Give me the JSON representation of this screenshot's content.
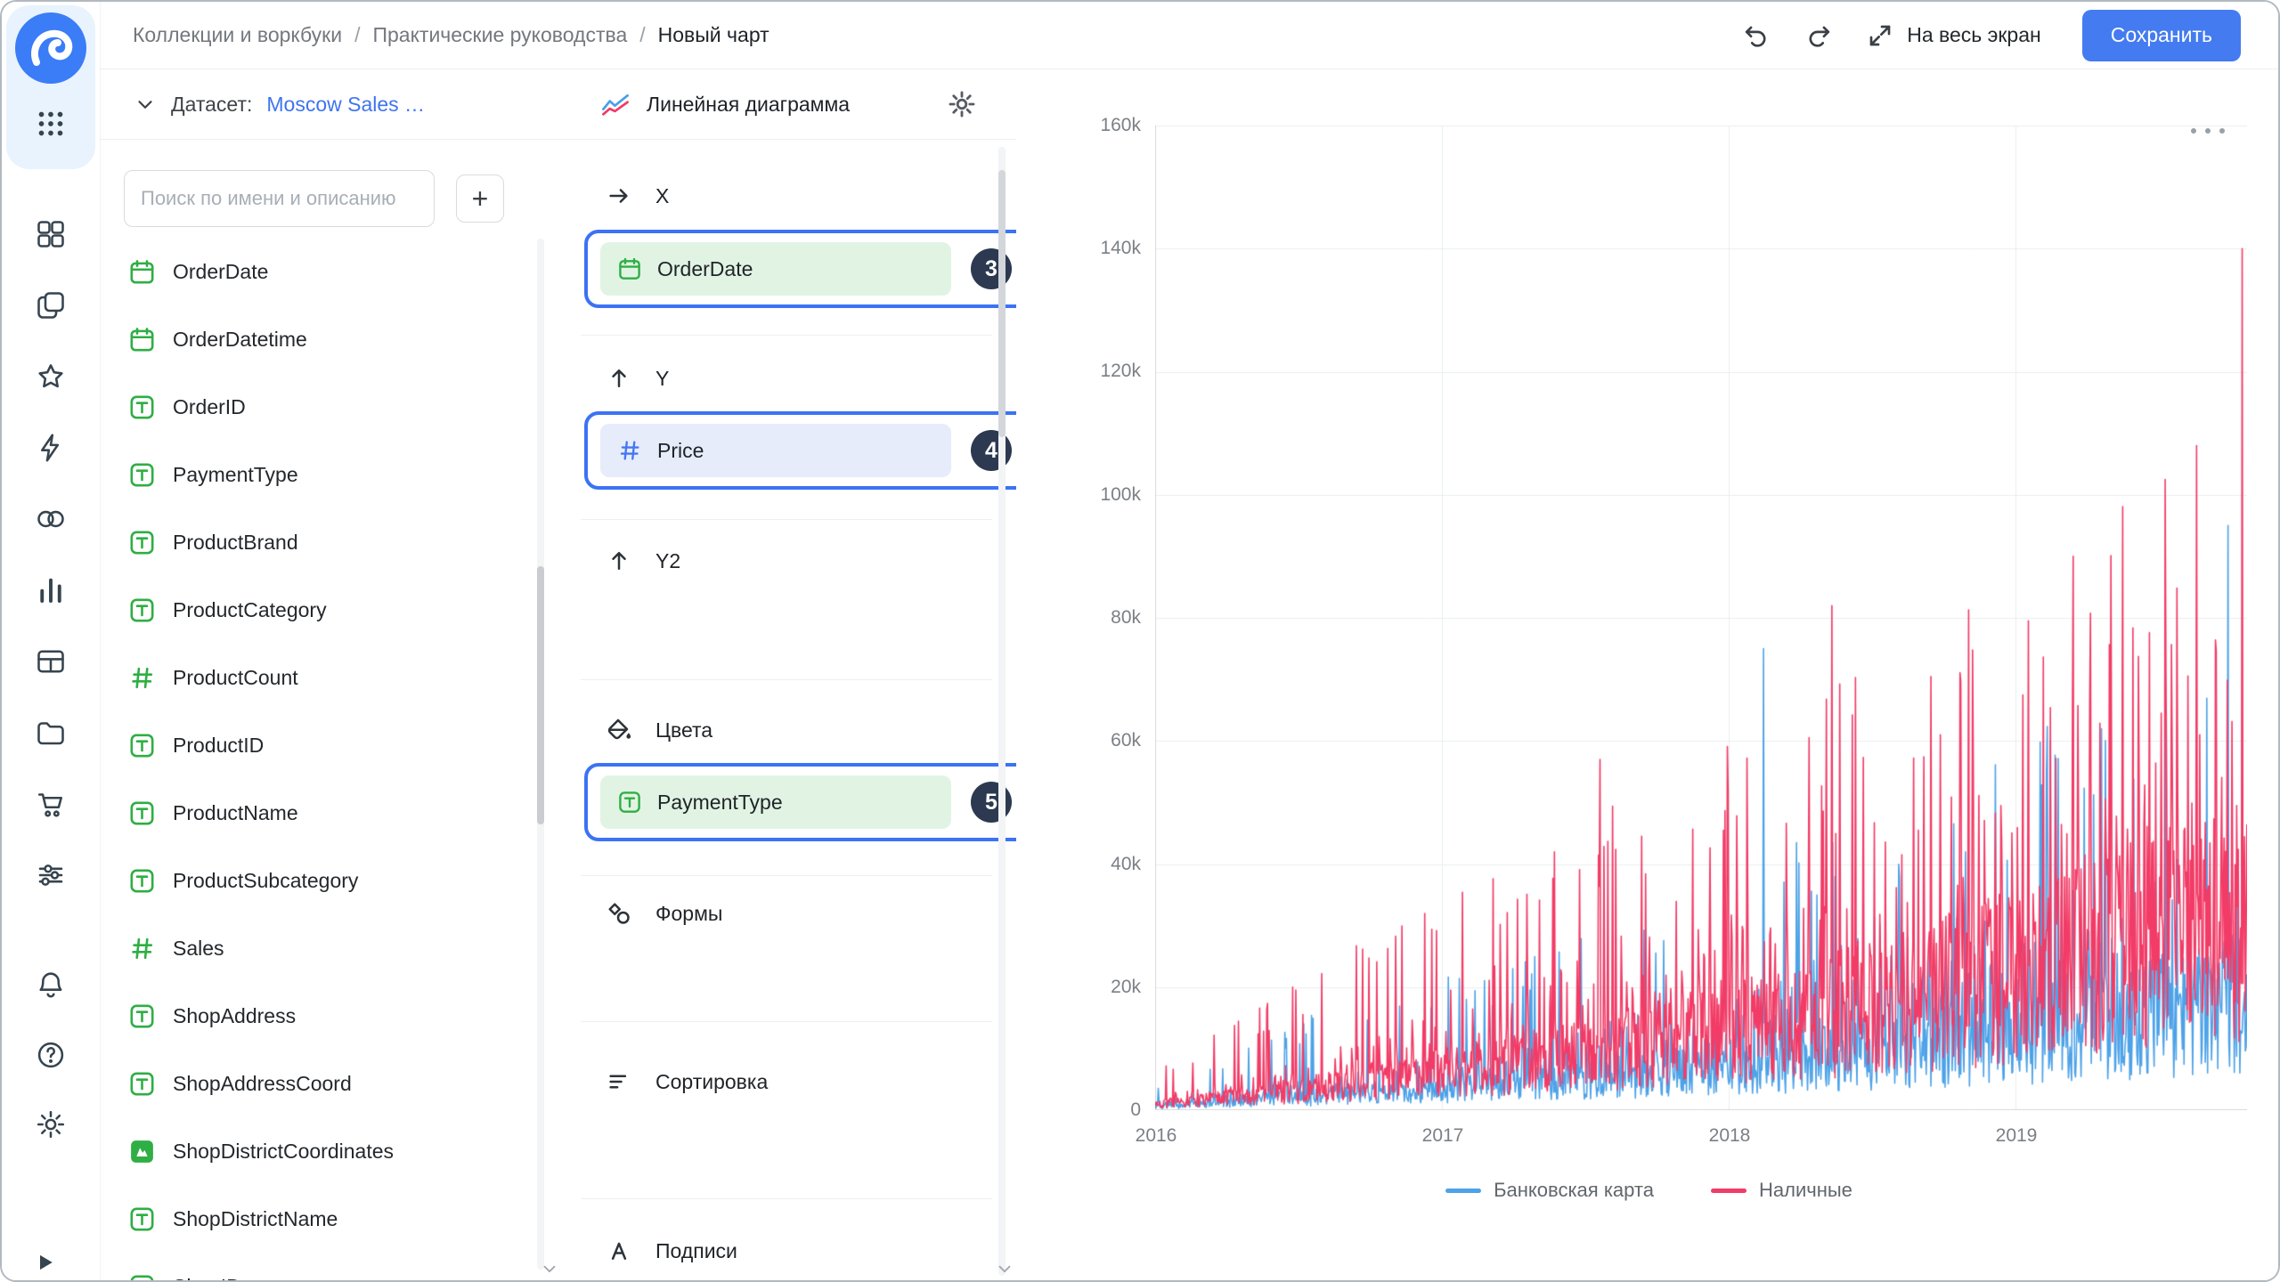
{
  "header": {
    "breadcrumbs": [
      "Коллекции и воркбуки",
      "Практические руководства",
      "Новый чарт"
    ],
    "separator": "/",
    "fullscreen_label": "На весь экран",
    "save_label": "Сохранить"
  },
  "rail": {
    "icons": [
      "datalens-logo-icon",
      "apps-grid-icon",
      "dashboards-icon",
      "workbooks-icon",
      "favorites-icon",
      "functions-icon",
      "connections-icon",
      "charts-icon",
      "tables-icon",
      "storage-icon",
      "cart-icon",
      "sliders-icon",
      "bell-icon",
      "help-icon",
      "gear-icon",
      "play-icon"
    ]
  },
  "dataset_panel": {
    "label": "Датасет:",
    "dataset_name": "Moscow Sales …",
    "search_placeholder": "Поиск по имени и описанию",
    "add_button": "+",
    "fields": [
      {
        "label": "OrderDate",
        "type": "date"
      },
      {
        "label": "OrderDatetime",
        "type": "date"
      },
      {
        "label": "OrderID",
        "type": "string"
      },
      {
        "label": "PaymentType",
        "type": "string"
      },
      {
        "label": "ProductBrand",
        "type": "string"
      },
      {
        "label": "ProductCategory",
        "type": "string"
      },
      {
        "label": "ProductCount",
        "type": "number"
      },
      {
        "label": "ProductID",
        "type": "string"
      },
      {
        "label": "ProductName",
        "type": "string"
      },
      {
        "label": "ProductSubcategory",
        "type": "string"
      },
      {
        "label": "Sales",
        "type": "number"
      },
      {
        "label": "ShopAddress",
        "type": "string"
      },
      {
        "label": "ShopAddressCoord",
        "type": "string"
      },
      {
        "label": "ShopDistrictCoordinates",
        "type": "geo"
      },
      {
        "label": "ShopDistrictName",
        "type": "string"
      },
      {
        "label": "ShopID",
        "type": "string"
      }
    ]
  },
  "config_panel": {
    "title": "Линейная диаграмма",
    "sections": [
      {
        "key": "x",
        "label": "X",
        "icon": "arrow-right-icon",
        "field": {
          "label": "OrderDate",
          "type": "date"
        },
        "badge": "3"
      },
      {
        "key": "y",
        "label": "Y",
        "icon": "arrow-up-icon",
        "field": {
          "label": "Price",
          "type": "number"
        },
        "badge": "4"
      },
      {
        "key": "y2",
        "label": "Y2",
        "icon": "arrow-up-icon"
      },
      {
        "key": "colors",
        "label": "Цвета",
        "icon": "paint-bucket-icon",
        "field": {
          "label": "PaymentType",
          "type": "string"
        },
        "badge": "5"
      },
      {
        "key": "shapes",
        "label": "Формы",
        "icon": "shapes-icon"
      },
      {
        "key": "sort",
        "label": "Сортировка",
        "icon": "sort-icon"
      },
      {
        "key": "labels",
        "label": "Подписи",
        "icon": "labels-icon"
      }
    ]
  },
  "colors": {
    "accent_blue": "#447BF0",
    "highlight_outline": "#3C72F5",
    "badge_bg": "#2C3950",
    "field_green": "#2FAE44",
    "field_green_bg": "#E1F4E3",
    "measure_blue": "#4477F2",
    "measure_blue_bg": "#E7ECFB",
    "series_blue": "#4DA2E8",
    "series_red": "#F23B66"
  },
  "chart_data": {
    "type": "line",
    "title": "",
    "xlabel": "",
    "ylabel": "",
    "x_ticks": [
      "2016",
      "2017",
      "2018",
      "2019"
    ],
    "y_ticks": [
      "0",
      "20k",
      "40k",
      "60k",
      "80k",
      "100k",
      "120k",
      "140k",
      "160k"
    ],
    "ylim": [
      0,
      160000
    ],
    "x_range_years": [
      2016.0,
      2019.806
    ],
    "points_per_year": 365,
    "grid": true,
    "legend_position": "bottom",
    "seed": 42,
    "series": [
      {
        "name": "Банковская карта",
        "color": "#4DA2E8",
        "trend": [
          [
            2016.0,
            800
          ],
          [
            2016.5,
            2600
          ],
          [
            2017.0,
            4600
          ],
          [
            2017.5,
            6500
          ],
          [
            2018.0,
            9500
          ],
          [
            2018.5,
            12500
          ],
          [
            2019.0,
            16000
          ],
          [
            2019.806,
            23000
          ]
        ],
        "peak": [
          [
            2016.0,
            4000
          ],
          [
            2016.5,
            15000
          ],
          [
            2017.0,
            22000
          ],
          [
            2017.5,
            30000
          ],
          [
            2018.0,
            42000
          ],
          [
            2018.5,
            52000
          ],
          [
            2019.0,
            60000
          ],
          [
            2019.806,
            80000
          ]
        ],
        "spikes": [
          [
            2018.12,
            75000
          ],
          [
            2019.3,
            62000
          ],
          [
            2019.74,
            95000
          ]
        ]
      },
      {
        "name": "Наличные",
        "color": "#F23B66",
        "trend": [
          [
            2016.0,
            1100
          ],
          [
            2016.5,
            4200
          ],
          [
            2017.0,
            8000
          ],
          [
            2017.5,
            12000
          ],
          [
            2018.0,
            17000
          ],
          [
            2018.5,
            22000
          ],
          [
            2019.0,
            29000
          ],
          [
            2019.806,
            44000
          ]
        ],
        "peak": [
          [
            2016.0,
            6500
          ],
          [
            2016.5,
            22000
          ],
          [
            2017.0,
            34000
          ],
          [
            2017.5,
            50000
          ],
          [
            2018.0,
            60000
          ],
          [
            2018.5,
            75000
          ],
          [
            2019.0,
            88000
          ],
          [
            2019.4,
            100000
          ],
          [
            2019.806,
            120000
          ]
        ],
        "spikes": [
          [
            2017.55,
            57000
          ],
          [
            2018.36,
            82000
          ],
          [
            2019.2,
            90000
          ],
          [
            2019.63,
            108000
          ],
          [
            2019.79,
            140000
          ]
        ]
      }
    ]
  }
}
